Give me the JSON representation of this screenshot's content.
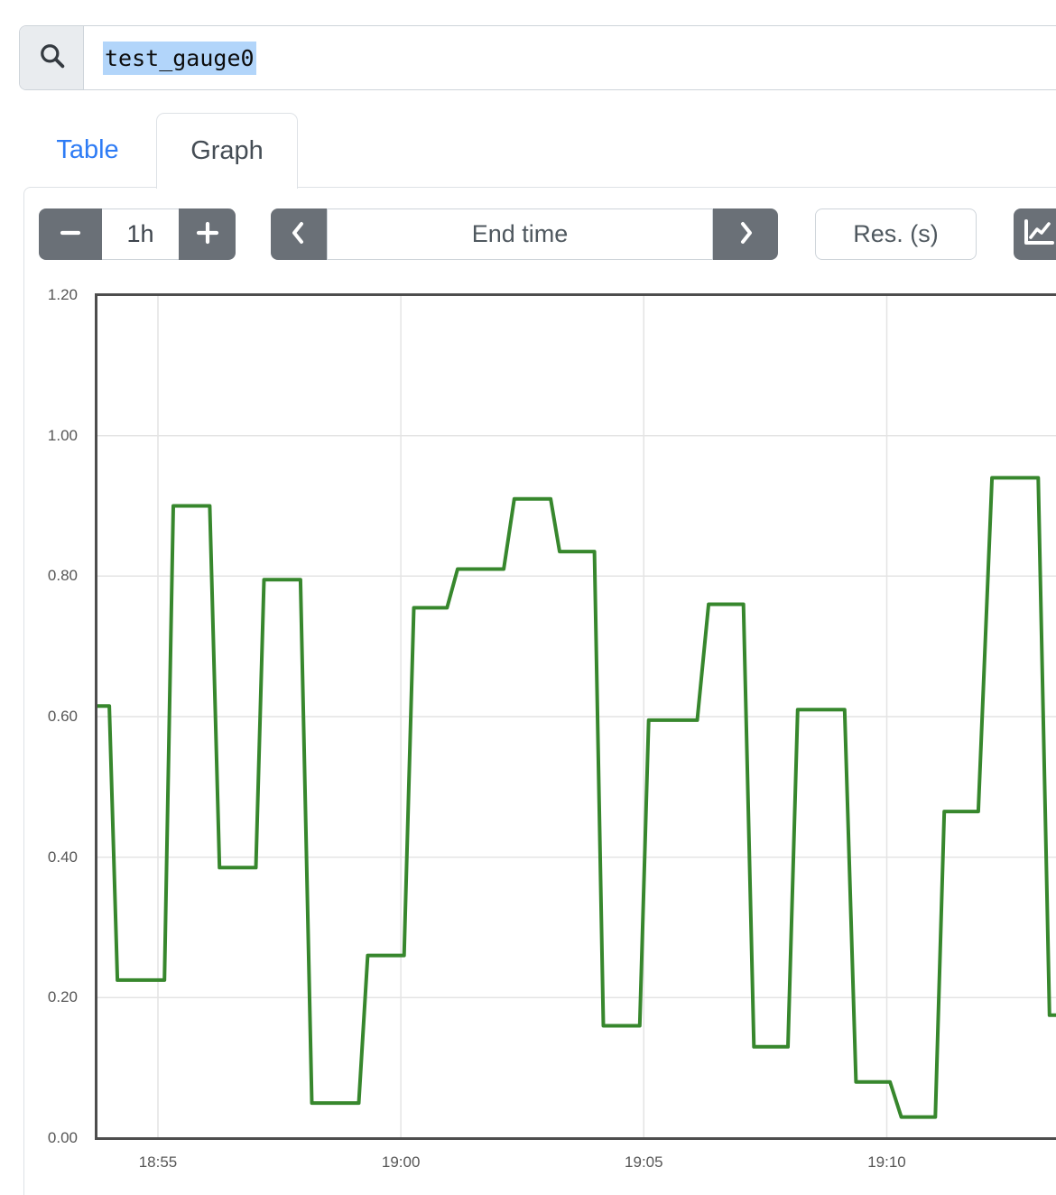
{
  "colors": {
    "accent_blue": "#2e7cf5",
    "button_gray": "#6a7077",
    "selection_blue": "#b2d5fa",
    "input_border": "#ced4da",
    "panel_border": "#dee2e6"
  },
  "search": {
    "value": "test_gauge0",
    "selected": true
  },
  "tabs": {
    "table": "Table",
    "graph": "Graph",
    "active": "Graph"
  },
  "controls": {
    "range": {
      "value": "1h"
    },
    "end_time": {
      "placeholder": "End time"
    },
    "resolution": {
      "placeholder": "Res. (s)"
    },
    "icons": {
      "search": "magnifier",
      "range_decrease": "minus",
      "range_increase": "plus",
      "time_back": "chevron-left",
      "time_forward": "chevron-right",
      "graph_mode": "chart-line"
    }
  },
  "chart_data": {
    "type": "line",
    "title": "",
    "xlabel": "",
    "ylabel": "",
    "grid": true,
    "legend": false,
    "ylim": [
      0.0,
      1.2
    ],
    "y_ticks": [
      "1.20",
      "1.00",
      "0.80",
      "0.60",
      "0.40",
      "0.20",
      "0.00"
    ],
    "x_ticks": [
      "18:55",
      "19:00",
      "19:05",
      "19:10"
    ],
    "x_range": [
      "18:53:42",
      "19:13:29"
    ],
    "colors": {
      "grid": "#e4e4e4",
      "frame": "#4d4d4d",
      "axis_text": "#565656"
    },
    "series": [
      {
        "name": "test_gauge0",
        "color": "#37872d",
        "points": [
          [
            "18:53:42",
            0.615
          ],
          [
            "18:54:00",
            0.615
          ],
          [
            "18:54:10",
            0.225
          ],
          [
            "18:55:08",
            0.225
          ],
          [
            "18:55:19",
            0.9
          ],
          [
            "18:56:04",
            0.9
          ],
          [
            "18:56:16",
            0.385
          ],
          [
            "18:57:01",
            0.385
          ],
          [
            "18:57:11",
            0.795
          ],
          [
            "18:57:56",
            0.795
          ],
          [
            "18:58:10",
            0.05
          ],
          [
            "18:59:08",
            0.05
          ],
          [
            "18:59:19",
            0.26
          ],
          [
            "19:00:04",
            0.26
          ],
          [
            "19:00:16",
            0.755
          ],
          [
            "19:00:57",
            0.755
          ],
          [
            "19:01:10",
            0.81
          ],
          [
            "19:02:07",
            0.81
          ],
          [
            "19:02:20",
            0.91
          ],
          [
            "19:03:05",
            0.91
          ],
          [
            "19:03:16",
            0.835
          ],
          [
            "19:03:59",
            0.835
          ],
          [
            "19:04:10",
            0.16
          ],
          [
            "19:04:55",
            0.16
          ],
          [
            "19:05:06",
            0.595
          ],
          [
            "19:06:06",
            0.595
          ],
          [
            "19:06:20",
            0.76
          ],
          [
            "19:07:03",
            0.76
          ],
          [
            "19:07:16",
            0.13
          ],
          [
            "19:07:58",
            0.13
          ],
          [
            "19:08:10",
            0.61
          ],
          [
            "19:09:08",
            0.61
          ],
          [
            "19:09:22",
            0.08
          ],
          [
            "19:10:04",
            0.08
          ],
          [
            "19:10:18",
            0.03
          ],
          [
            "19:11:00",
            0.03
          ],
          [
            "19:11:11",
            0.465
          ],
          [
            "19:11:53",
            0.465
          ],
          [
            "19:12:10",
            0.94
          ],
          [
            "19:13:07",
            0.94
          ],
          [
            "19:13:21",
            0.175
          ],
          [
            "19:13:29",
            0.175
          ]
        ]
      }
    ]
  }
}
